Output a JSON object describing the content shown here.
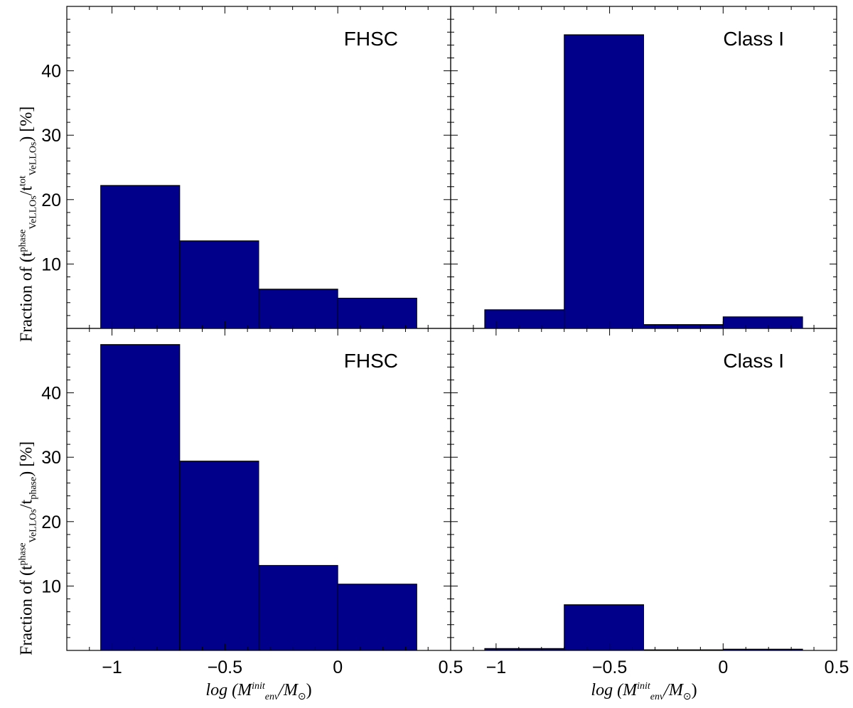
{
  "chart_data": [
    {
      "type": "bar",
      "panel": "top-left",
      "label": "FHSC",
      "bin_edges": [
        -1.05,
        -0.7,
        -0.35,
        0.0,
        0.35
      ],
      "values": [
        22.2,
        13.6,
        6.1,
        4.7
      ],
      "xlim": [
        -1.2,
        0.5
      ],
      "ylim": [
        0,
        50
      ],
      "yticks": [
        "10",
        "20",
        "30",
        "40"
      ],
      "ylabel": "Fraction of (t^phase_VeLLOs/t^tot_VeLLOs) [%]",
      "color": "#00008B"
    },
    {
      "type": "bar",
      "panel": "top-right",
      "label": "Class I",
      "bin_edges": [
        -1.05,
        -0.7,
        -0.35,
        0.0,
        0.35
      ],
      "values": [
        2.9,
        45.6,
        0.6,
        1.8
      ],
      "xlim": [
        -1.2,
        0.5
      ],
      "ylim": [
        0,
        50
      ],
      "color": "#00008B"
    },
    {
      "type": "bar",
      "panel": "bottom-left",
      "label": "FHSC",
      "bin_edges": [
        -1.05,
        -0.7,
        -0.35,
        0.0,
        0.35
      ],
      "values": [
        47.5,
        29.4,
        13.2,
        10.3
      ],
      "xlim": [
        -1.2,
        0.5
      ],
      "ylim": [
        0,
        50
      ],
      "yticks": [
        "10",
        "20",
        "30",
        "40"
      ],
      "xticks": [
        "−1",
        "−0.5",
        "0",
        "0.5"
      ],
      "ylabel": "Fraction of (t^phase_VeLLOs/t_phase) [%]",
      "xlabel": "log (M^init_env/M⊙)",
      "color": "#00008B"
    },
    {
      "type": "bar",
      "panel": "bottom-right",
      "label": "Class I",
      "bin_edges": [
        -1.05,
        -0.7,
        -0.35,
        0.0,
        0.35
      ],
      "values": [
        0.3,
        7.1,
        0.1,
        0.2
      ],
      "xlim": [
        -1.2,
        0.5
      ],
      "ylim": [
        0,
        50
      ],
      "xticks": [
        "−1",
        "−0.5",
        "0",
        "0.5"
      ],
      "xlabel": "log (M^init_env/M⊙)",
      "color": "#00008B"
    }
  ],
  "labels": {
    "ylabel_top_prefix": "Fraction of (t",
    "ylabel_sup": "phase",
    "ylabel_sub": "VeLLOs",
    "ylabel_top_den": "/t",
    "ylabel_top_den_sup": "tot",
    "ylabel_top_den_sub": "VeLLOs",
    "ylabel_bottom_den": "/t",
    "ylabel_bottom_den_sub": "phase",
    "ylabel_suffix": ") [%]",
    "xlabel_log": "log (",
    "xlabel_M": "M",
    "xlabel_sup": "init",
    "xlabel_sub": "env",
    "xlabel_mid": "/M",
    "xlabel_sun_sub": "⊙",
    "xlabel_end": ")"
  }
}
